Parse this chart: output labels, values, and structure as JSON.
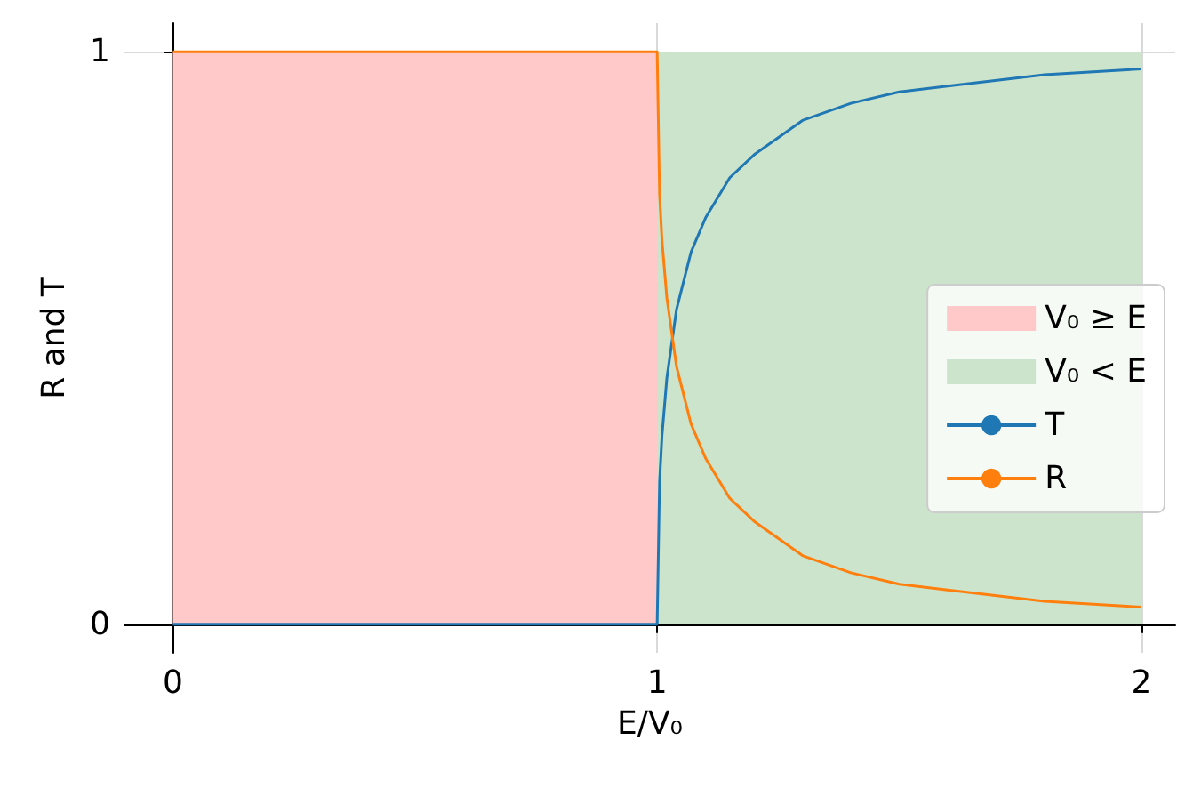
{
  "chart_data": {
    "type": "line",
    "xlabel": "E/V₀",
    "ylabel": "R and T",
    "xlim": [
      -0.1,
      2.07
    ],
    "ylim": [
      -0.05,
      1.05
    ],
    "xticks": [
      0,
      1,
      2
    ],
    "yticks": [
      0,
      1
    ],
    "grid": true,
    "legend": "right",
    "marker": "none",
    "series": [
      {
        "name": "V₀ ≥ E",
        "type": "area",
        "color": "#ffc9c9",
        "x": [
          0,
          1
        ],
        "values": [
          1,
          1
        ]
      },
      {
        "name": "V₀ < E",
        "type": "area",
        "color": "#cce4cc",
        "x": [
          1,
          2
        ],
        "values": [
          1,
          1
        ]
      },
      {
        "name": "T",
        "color": "#1f77b4",
        "x": [
          0,
          0.5,
          1,
          1.005,
          1.01,
          1.02,
          1.04,
          1.07,
          1.1,
          1.15,
          1.2,
          1.3,
          1.4,
          1.5,
          1.6,
          1.8,
          2
        ],
        "values": [
          0,
          0,
          0,
          0.25,
          0.33,
          0.43,
          0.55,
          0.65,
          0.71,
          0.78,
          0.82,
          0.88,
          0.91,
          0.93,
          0.94,
          0.96,
          0.97
        ]
      },
      {
        "name": "R",
        "color": "#ff7f0e",
        "x": [
          0,
          0.5,
          1,
          1.005,
          1.01,
          1.02,
          1.04,
          1.07,
          1.1,
          1.15,
          1.2,
          1.3,
          1.4,
          1.5,
          1.6,
          1.8,
          2
        ],
        "values": [
          1,
          1,
          1,
          0.75,
          0.67,
          0.57,
          0.45,
          0.35,
          0.29,
          0.22,
          0.18,
          0.12,
          0.09,
          0.07,
          0.06,
          0.04,
          0.03
        ]
      }
    ]
  }
}
